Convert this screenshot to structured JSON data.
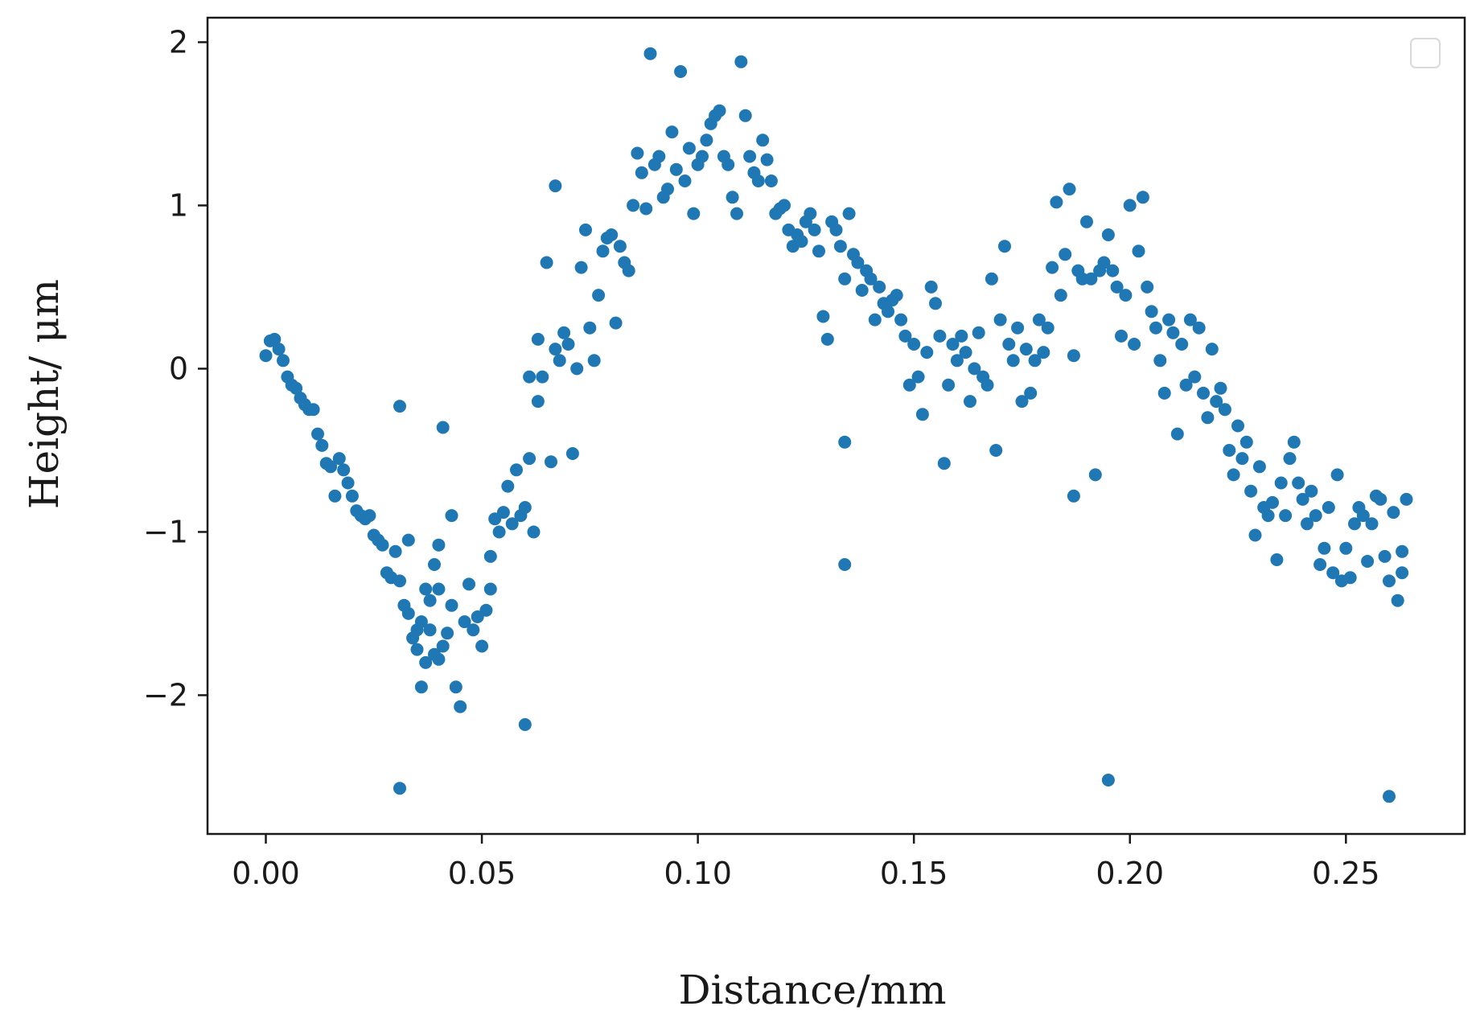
{
  "chart_data": {
    "type": "scatter",
    "title": "",
    "xlabel": "Distance/mm",
    "ylabel": "Height/ μm",
    "xlim": [
      -0.0135,
      0.2775
    ],
    "ylim": [
      -2.85,
      2.15
    ],
    "xticks": [
      0.0,
      0.05,
      0.1,
      0.15,
      0.2,
      0.25
    ],
    "xtick_labels": [
      "0.00",
      "0.05",
      "0.10",
      "0.15",
      "0.20",
      "0.25"
    ],
    "yticks": [
      2,
      1,
      0,
      -1,
      -2
    ],
    "ytick_labels": [
      "2",
      "1",
      "0",
      "−1",
      "−2"
    ],
    "grid": false,
    "legend": "top-right (empty)",
    "marker_color": "#1f77b4",
    "series": [
      {
        "points": [
          [
            0.0,
            0.08
          ],
          [
            0.001,
            0.17
          ],
          [
            0.002,
            0.18
          ],
          [
            0.003,
            0.12
          ],
          [
            0.004,
            0.05
          ],
          [
            0.005,
            -0.05
          ],
          [
            0.006,
            -0.1
          ],
          [
            0.007,
            -0.12
          ],
          [
            0.008,
            -0.18
          ],
          [
            0.009,
            -0.22
          ],
          [
            0.01,
            -0.25
          ],
          [
            0.011,
            -0.25
          ],
          [
            0.012,
            -0.4
          ],
          [
            0.013,
            -0.47
          ],
          [
            0.014,
            -0.58
          ],
          [
            0.015,
            -0.6
          ],
          [
            0.016,
            -0.78
          ],
          [
            0.017,
            -0.55
          ],
          [
            0.018,
            -0.62
          ],
          [
            0.019,
            -0.7
          ],
          [
            0.02,
            -0.78
          ],
          [
            0.021,
            -0.87
          ],
          [
            0.022,
            -0.9
          ],
          [
            0.023,
            -0.92
          ],
          [
            0.024,
            -0.9
          ],
          [
            0.025,
            -1.02
          ],
          [
            0.026,
            -1.05
          ],
          [
            0.027,
            -1.08
          ],
          [
            0.028,
            -1.25
          ],
          [
            0.029,
            -1.28
          ],
          [
            0.03,
            -1.12
          ],
          [
            0.031,
            -1.3
          ],
          [
            0.032,
            -1.45
          ],
          [
            0.033,
            -1.5
          ],
          [
            0.034,
            -1.65
          ],
          [
            0.035,
            -1.6
          ],
          [
            0.036,
            -1.55
          ],
          [
            0.037,
            -1.35
          ],
          [
            0.038,
            -1.42
          ],
          [
            0.039,
            -1.2
          ],
          [
            0.04,
            -1.08
          ],
          [
            0.04,
            -1.35
          ],
          [
            0.031,
            -0.23
          ],
          [
            0.031,
            -2.57
          ],
          [
            0.033,
            -1.05
          ],
          [
            0.035,
            -1.72
          ],
          [
            0.036,
            -1.95
          ],
          [
            0.037,
            -1.8
          ],
          [
            0.038,
            -1.6
          ],
          [
            0.039,
            -1.75
          ],
          [
            0.04,
            -1.78
          ],
          [
            0.041,
            -0.36
          ],
          [
            0.041,
            -1.7
          ],
          [
            0.042,
            -1.62
          ],
          [
            0.043,
            -1.45
          ],
          [
            0.043,
            -0.9
          ],
          [
            0.044,
            -1.95
          ],
          [
            0.045,
            -2.07
          ],
          [
            0.046,
            -1.55
          ],
          [
            0.047,
            -1.32
          ],
          [
            0.048,
            -1.6
          ],
          [
            0.049,
            -1.52
          ],
          [
            0.05,
            -1.7
          ],
          [
            0.051,
            -1.48
          ],
          [
            0.052,
            -1.35
          ],
          [
            0.052,
            -1.15
          ],
          [
            0.053,
            -0.92
          ],
          [
            0.054,
            -1.0
          ],
          [
            0.055,
            -0.88
          ],
          [
            0.056,
            -0.72
          ],
          [
            0.057,
            -0.95
          ],
          [
            0.058,
            -0.62
          ],
          [
            0.059,
            -0.9
          ],
          [
            0.06,
            -0.85
          ],
          [
            0.06,
            -2.18
          ],
          [
            0.061,
            -0.05
          ],
          [
            0.061,
            -0.55
          ],
          [
            0.062,
            -1.0
          ],
          [
            0.063,
            0.18
          ],
          [
            0.063,
            -0.2
          ],
          [
            0.064,
            -0.05
          ],
          [
            0.065,
            0.65
          ],
          [
            0.066,
            -0.57
          ],
          [
            0.067,
            0.12
          ],
          [
            0.067,
            1.12
          ],
          [
            0.068,
            0.05
          ],
          [
            0.069,
            0.22
          ],
          [
            0.07,
            0.15
          ],
          [
            0.071,
            -0.52
          ],
          [
            0.072,
            0.0
          ],
          [
            0.073,
            0.62
          ],
          [
            0.074,
            0.85
          ],
          [
            0.075,
            0.25
          ],
          [
            0.076,
            0.05
          ],
          [
            0.077,
            0.45
          ],
          [
            0.078,
            0.72
          ],
          [
            0.079,
            0.8
          ],
          [
            0.08,
            0.82
          ],
          [
            0.081,
            0.28
          ],
          [
            0.082,
            0.75
          ],
          [
            0.083,
            0.65
          ],
          [
            0.084,
            0.6
          ],
          [
            0.085,
            1.0
          ],
          [
            0.086,
            1.32
          ],
          [
            0.087,
            1.2
          ],
          [
            0.088,
            0.98
          ],
          [
            0.089,
            1.93
          ],
          [
            0.09,
            1.25
          ],
          [
            0.091,
            1.3
          ],
          [
            0.092,
            1.05
          ],
          [
            0.093,
            1.1
          ],
          [
            0.094,
            1.45
          ],
          [
            0.095,
            1.22
          ],
          [
            0.096,
            1.82
          ],
          [
            0.097,
            1.15
          ],
          [
            0.098,
            1.35
          ],
          [
            0.099,
            0.95
          ],
          [
            0.1,
            1.25
          ],
          [
            0.101,
            1.3
          ],
          [
            0.102,
            1.4
          ],
          [
            0.103,
            1.5
          ],
          [
            0.104,
            1.55
          ],
          [
            0.105,
            1.58
          ],
          [
            0.106,
            1.3
          ],
          [
            0.107,
            1.25
          ],
          [
            0.108,
            1.05
          ],
          [
            0.109,
            0.95
          ],
          [
            0.11,
            1.88
          ],
          [
            0.111,
            1.55
          ],
          [
            0.112,
            1.3
          ],
          [
            0.113,
            1.2
          ],
          [
            0.114,
            1.15
          ],
          [
            0.115,
            1.4
          ],
          [
            0.116,
            1.28
          ],
          [
            0.117,
            1.15
          ],
          [
            0.118,
            0.95
          ],
          [
            0.119,
            0.98
          ],
          [
            0.12,
            1.0
          ],
          [
            0.121,
            0.85
          ],
          [
            0.122,
            0.75
          ],
          [
            0.123,
            0.82
          ],
          [
            0.124,
            0.78
          ],
          [
            0.125,
            0.9
          ],
          [
            0.126,
            0.95
          ],
          [
            0.127,
            0.85
          ],
          [
            0.128,
            0.72
          ],
          [
            0.129,
            0.32
          ],
          [
            0.13,
            0.18
          ],
          [
            0.131,
            0.9
          ],
          [
            0.132,
            0.85
          ],
          [
            0.133,
            0.75
          ],
          [
            0.134,
            0.55
          ],
          [
            0.134,
            -0.45
          ],
          [
            0.134,
            -1.2
          ],
          [
            0.135,
            0.95
          ],
          [
            0.136,
            0.7
          ],
          [
            0.137,
            0.65
          ],
          [
            0.138,
            0.48
          ],
          [
            0.139,
            0.6
          ],
          [
            0.14,
            0.55
          ],
          [
            0.141,
            0.3
          ],
          [
            0.142,
            0.5
          ],
          [
            0.143,
            0.4
          ],
          [
            0.144,
            0.35
          ],
          [
            0.145,
            0.42
          ],
          [
            0.146,
            0.45
          ],
          [
            0.147,
            0.3
          ],
          [
            0.148,
            0.2
          ],
          [
            0.149,
            -0.1
          ],
          [
            0.15,
            0.15
          ],
          [
            0.151,
            -0.05
          ],
          [
            0.152,
            -0.28
          ],
          [
            0.153,
            0.1
          ],
          [
            0.154,
            0.5
          ],
          [
            0.155,
            0.4
          ],
          [
            0.156,
            0.2
          ],
          [
            0.157,
            -0.58
          ],
          [
            0.158,
            -0.1
          ],
          [
            0.159,
            0.15
          ],
          [
            0.16,
            0.05
          ],
          [
            0.161,
            0.2
          ],
          [
            0.162,
            0.1
          ],
          [
            0.163,
            -0.2
          ],
          [
            0.164,
            0.0
          ],
          [
            0.165,
            0.22
          ],
          [
            0.166,
            -0.05
          ],
          [
            0.167,
            -0.1
          ],
          [
            0.168,
            0.55
          ],
          [
            0.169,
            -0.5
          ],
          [
            0.17,
            0.3
          ],
          [
            0.171,
            0.75
          ],
          [
            0.172,
            0.15
          ],
          [
            0.173,
            0.05
          ],
          [
            0.174,
            0.25
          ],
          [
            0.175,
            -0.2
          ],
          [
            0.176,
            0.12
          ],
          [
            0.177,
            -0.15
          ],
          [
            0.178,
            0.05
          ],
          [
            0.179,
            0.3
          ],
          [
            0.18,
            0.1
          ],
          [
            0.181,
            0.25
          ],
          [
            0.182,
            0.62
          ],
          [
            0.183,
            1.02
          ],
          [
            0.184,
            0.45
          ],
          [
            0.185,
            0.7
          ],
          [
            0.186,
            1.1
          ],
          [
            0.187,
            0.08
          ],
          [
            0.187,
            -0.78
          ],
          [
            0.188,
            0.6
          ],
          [
            0.189,
            0.55
          ],
          [
            0.19,
            0.9
          ],
          [
            0.191,
            0.55
          ],
          [
            0.192,
            -0.65
          ],
          [
            0.193,
            0.6
          ],
          [
            0.194,
            0.65
          ],
          [
            0.195,
            0.82
          ],
          [
            0.195,
            -2.52
          ],
          [
            0.196,
            0.6
          ],
          [
            0.197,
            0.5
          ],
          [
            0.198,
            0.2
          ],
          [
            0.199,
            0.45
          ],
          [
            0.2,
            1.0
          ],
          [
            0.201,
            0.15
          ],
          [
            0.202,
            0.72
          ],
          [
            0.203,
            1.05
          ],
          [
            0.204,
            0.5
          ],
          [
            0.205,
            0.35
          ],
          [
            0.206,
            0.25
          ],
          [
            0.207,
            0.05
          ],
          [
            0.208,
            -0.15
          ],
          [
            0.209,
            0.3
          ],
          [
            0.21,
            0.22
          ],
          [
            0.211,
            -0.4
          ],
          [
            0.212,
            0.15
          ],
          [
            0.213,
            -0.1
          ],
          [
            0.214,
            0.3
          ],
          [
            0.215,
            -0.05
          ],
          [
            0.216,
            0.25
          ],
          [
            0.217,
            -0.15
          ],
          [
            0.218,
            -0.3
          ],
          [
            0.219,
            0.12
          ],
          [
            0.22,
            -0.2
          ],
          [
            0.221,
            -0.12
          ],
          [
            0.222,
            -0.25
          ],
          [
            0.223,
            -0.5
          ],
          [
            0.224,
            -0.65
          ],
          [
            0.225,
            -0.35
          ],
          [
            0.226,
            -0.55
          ],
          [
            0.227,
            -0.45
          ],
          [
            0.228,
            -0.75
          ],
          [
            0.229,
            -1.02
          ],
          [
            0.23,
            -0.6
          ],
          [
            0.231,
            -0.85
          ],
          [
            0.232,
            -0.9
          ],
          [
            0.233,
            -0.82
          ],
          [
            0.234,
            -1.17
          ],
          [
            0.235,
            -0.7
          ],
          [
            0.236,
            -0.9
          ],
          [
            0.237,
            -0.55
          ],
          [
            0.238,
            -0.45
          ],
          [
            0.239,
            -0.7
          ],
          [
            0.24,
            -0.8
          ],
          [
            0.241,
            -0.95
          ],
          [
            0.242,
            -0.75
          ],
          [
            0.243,
            -0.9
          ],
          [
            0.244,
            -1.2
          ],
          [
            0.245,
            -1.1
          ],
          [
            0.246,
            -0.85
          ],
          [
            0.247,
            -1.25
          ],
          [
            0.248,
            -0.65
          ],
          [
            0.249,
            -1.3
          ],
          [
            0.25,
            -1.1
          ],
          [
            0.251,
            -1.28
          ],
          [
            0.252,
            -0.95
          ],
          [
            0.253,
            -0.85
          ],
          [
            0.254,
            -0.9
          ],
          [
            0.255,
            -1.18
          ],
          [
            0.256,
            -0.95
          ],
          [
            0.257,
            -0.78
          ],
          [
            0.258,
            -0.8
          ],
          [
            0.259,
            -1.15
          ],
          [
            0.26,
            -1.3
          ],
          [
            0.26,
            -2.62
          ],
          [
            0.261,
            -0.88
          ],
          [
            0.262,
            -1.42
          ],
          [
            0.263,
            -1.12
          ],
          [
            0.263,
            -1.25
          ],
          [
            0.264,
            -0.8
          ]
        ]
      }
    ]
  }
}
